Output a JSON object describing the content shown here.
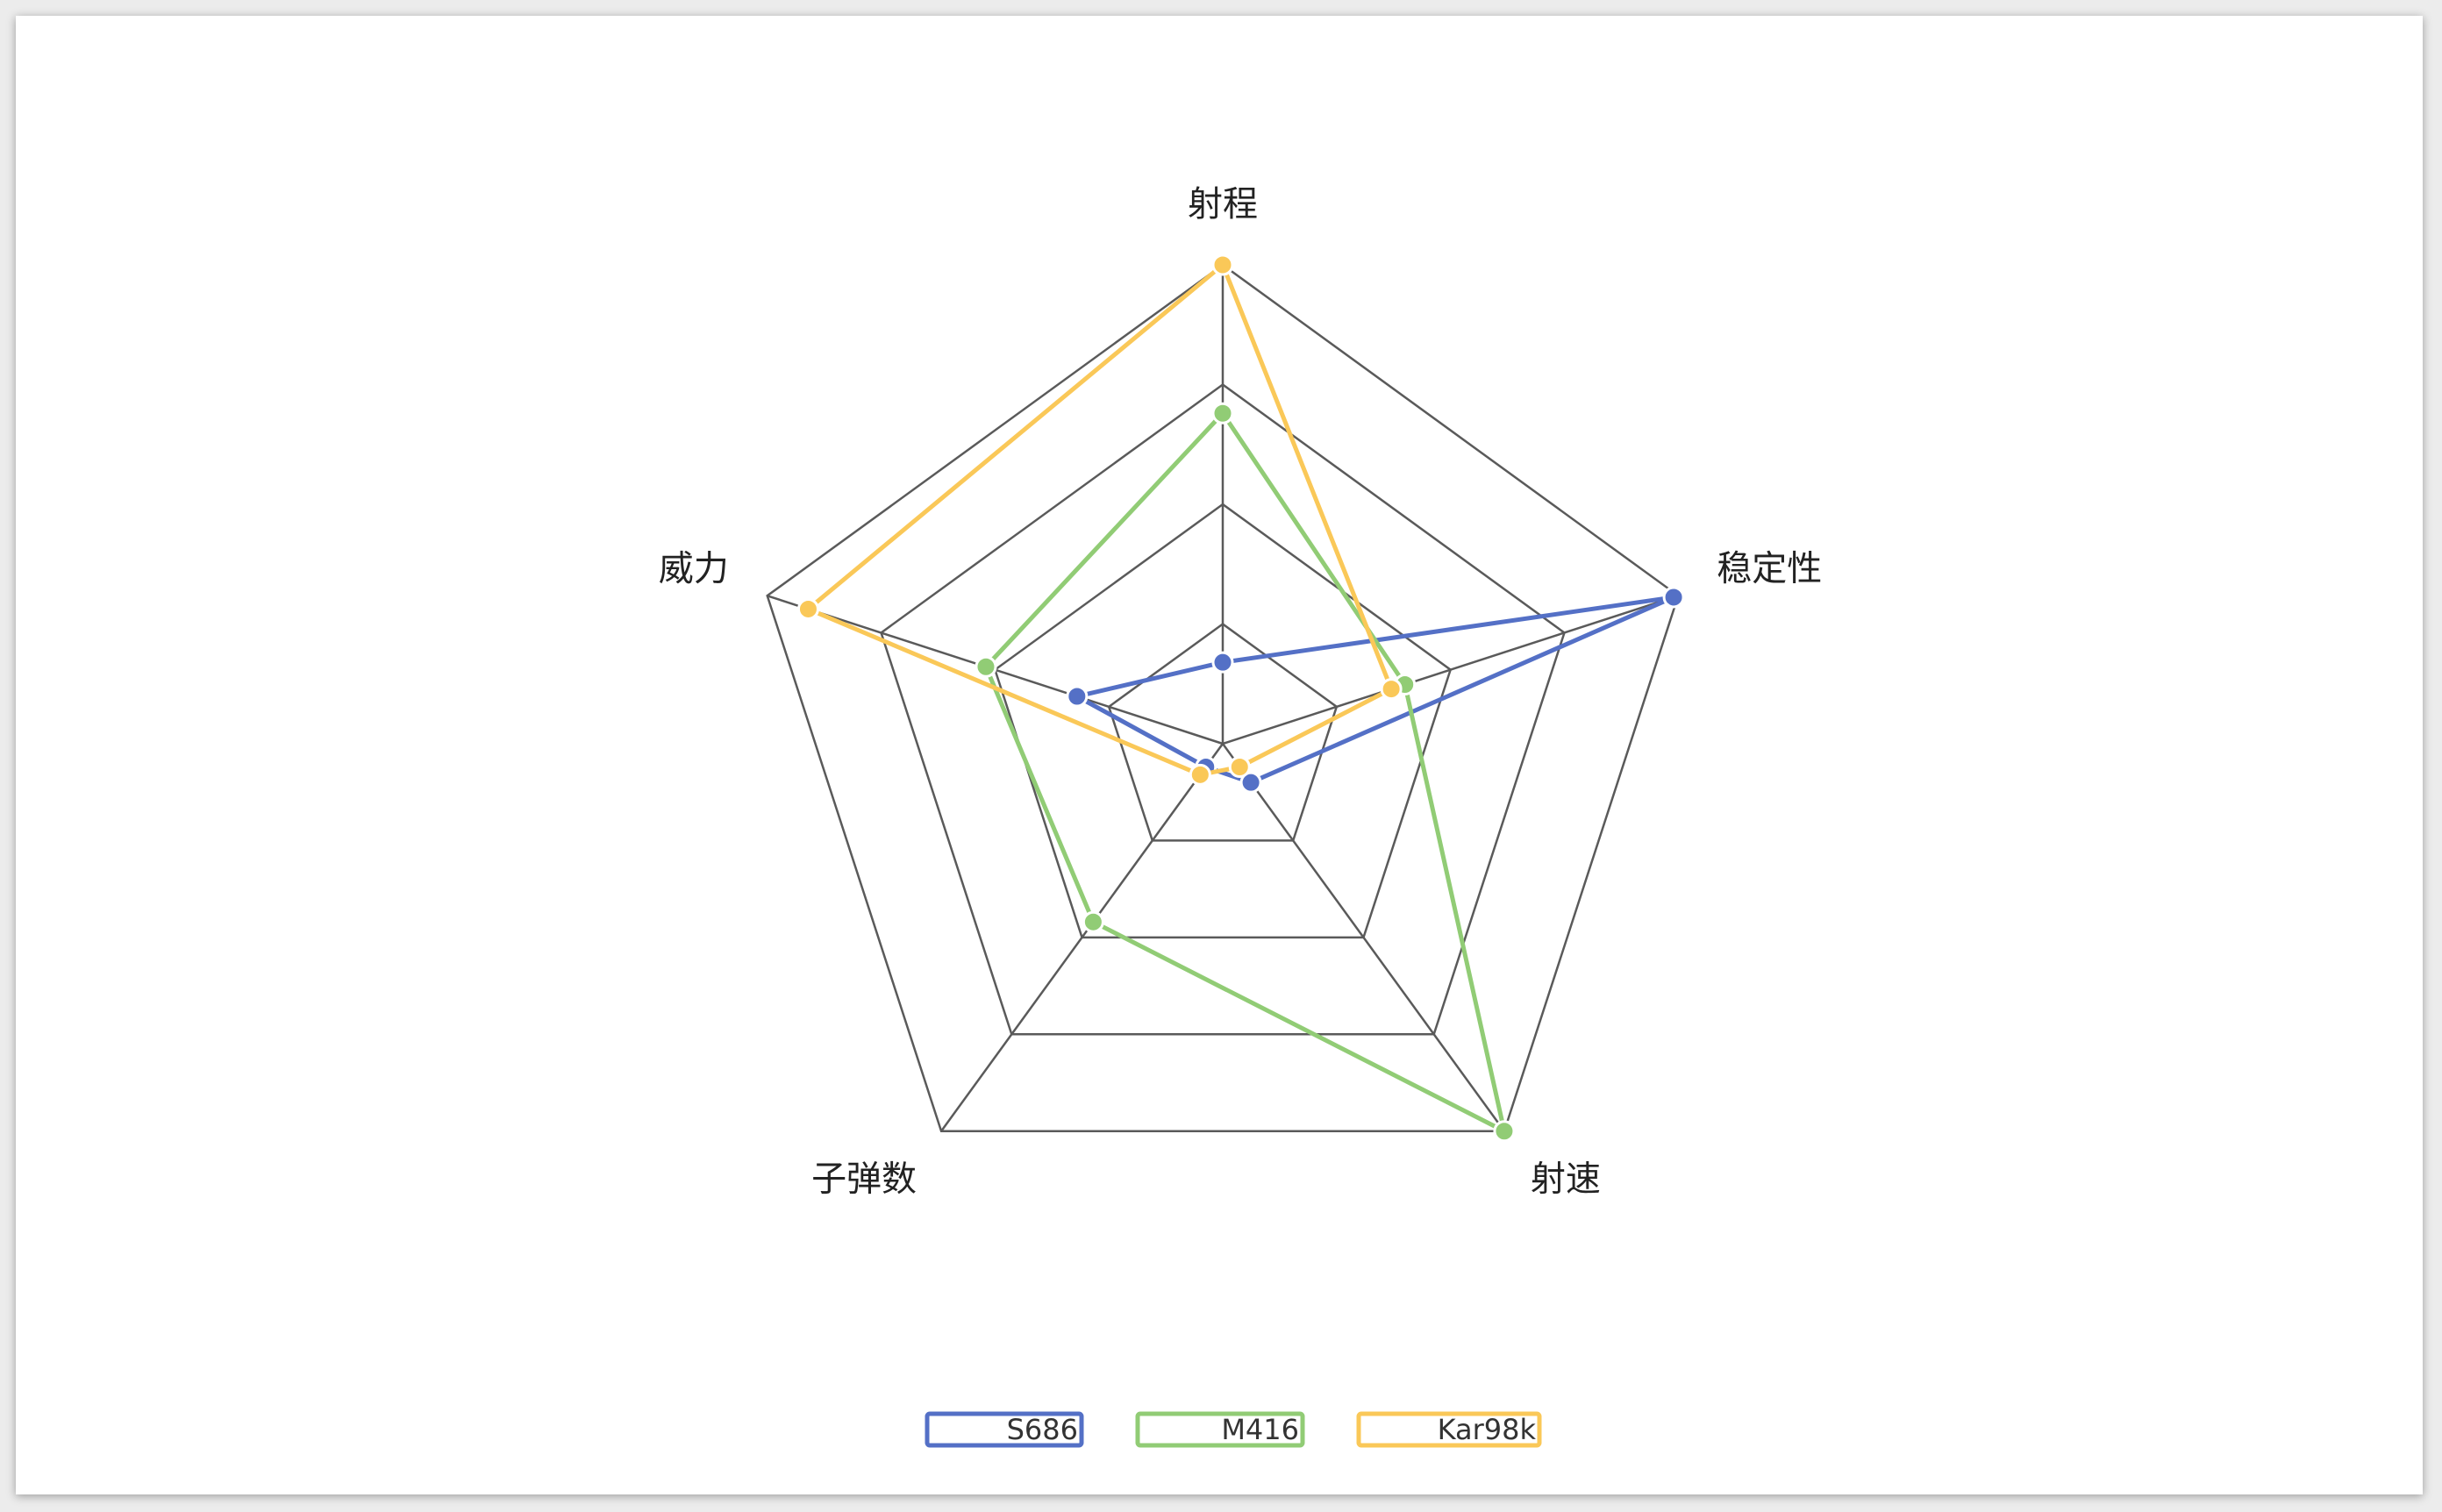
{
  "chart_data": {
    "type": "radar",
    "indicators": [
      "射程",
      "稳定性",
      "射速",
      "子弹数",
      "威力"
    ],
    "max": 100,
    "series": [
      {
        "name": "S686",
        "values": [
          17,
          99,
          10,
          6,
          32
        ],
        "color": "#5470c6"
      },
      {
        "name": "M416",
        "values": [
          69,
          40,
          100,
          46,
          52
        ],
        "color": "#91cc75"
      },
      {
        "name": "Kar98k",
        "values": [
          100,
          37,
          6,
          8,
          91
        ],
        "color": "#fac858"
      }
    ],
    "grid_rings": 4,
    "legend_position": "bottom-center"
  }
}
